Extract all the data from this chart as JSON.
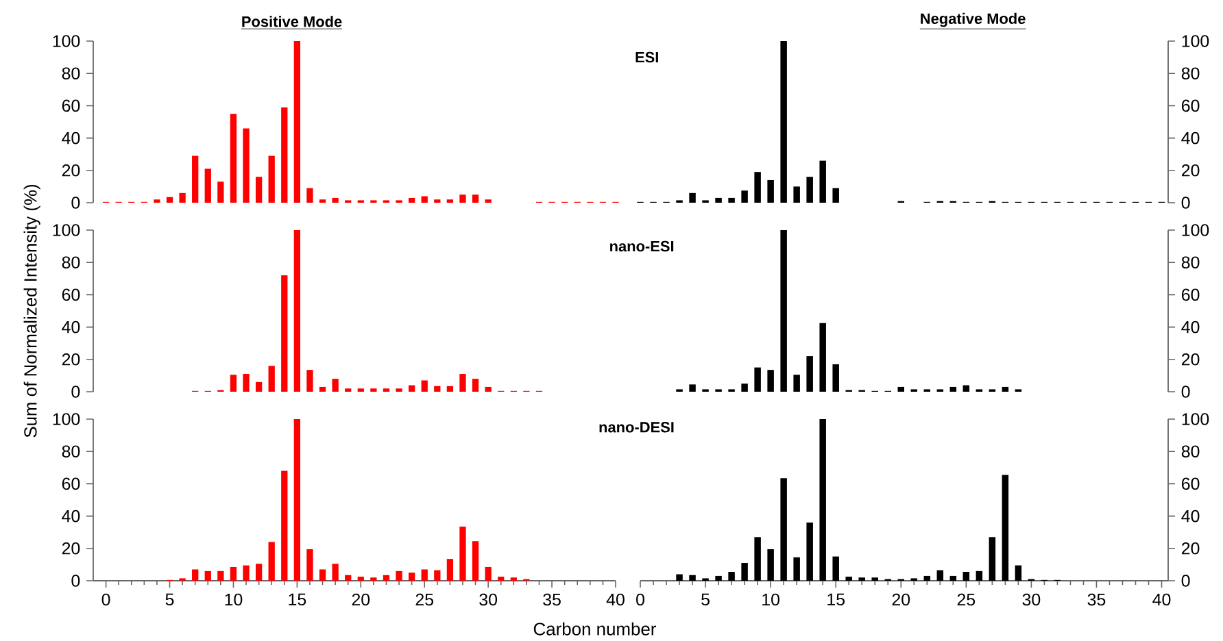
{
  "chart_data": [
    {
      "type": "bar",
      "title": "Positive Mode",
      "annotations": [
        "ESI"
      ],
      "xlim": [
        -1,
        40
      ],
      "ylim": [
        0,
        100
      ],
      "yticks": [
        0,
        20,
        40,
        60,
        80,
        100
      ],
      "tick_labels": "y",
      "x": [
        0,
        1,
        2,
        3,
        4,
        5,
        6,
        7,
        8,
        9,
        10,
        11,
        12,
        13,
        14,
        15,
        16,
        17,
        18,
        19,
        20,
        21,
        22,
        23,
        24,
        25,
        26,
        27,
        28,
        29,
        30,
        34,
        35,
        36,
        37,
        38,
        39,
        40
      ],
      "series": [
        {
          "color": "#ff0000",
          "values": [
            0.5,
            0.5,
            0.5,
            0.5,
            2,
            3.5,
            6,
            29,
            21,
            13,
            55,
            46,
            16,
            29,
            59,
            100,
            9,
            2,
            3,
            1.5,
            1.5,
            1.5,
            1.5,
            1.5,
            3,
            4,
            2,
            2,
            5,
            5,
            2,
            0.5,
            0.5,
            0.5,
            0.5,
            0.5,
            0.5,
            0.5
          ]
        }
      ]
    },
    {
      "type": "bar",
      "title": "Negative Mode",
      "xlim": [
        0,
        40.5
      ],
      "y2lim": [
        0,
        100
      ],
      "y2ticks": [
        0,
        20,
        40,
        60,
        80,
        100
      ],
      "tick_labels": "y2",
      "x": [
        0,
        1,
        2,
        3,
        4,
        5,
        6,
        7,
        8,
        9,
        10,
        11,
        12,
        13,
        14,
        15,
        20,
        22,
        23,
        24,
        25,
        26,
        27,
        28,
        29,
        30,
        31,
        32,
        33,
        34,
        35,
        36,
        37,
        38,
        39,
        40
      ],
      "series": [
        {
          "color": "#000000",
          "axis": "y2",
          "values": [
            0.5,
            0.5,
            0.5,
            1.5,
            6,
            1.5,
            3,
            3,
            7.5,
            19,
            14,
            100,
            10,
            16,
            26,
            9,
            1,
            0.5,
            1,
            1,
            0.5,
            0.5,
            1,
            0.5,
            0.5,
            0.5,
            0.5,
            0.5,
            0.5,
            0.5,
            0.5,
            0.5,
            0.5,
            0.5,
            0.5,
            0.5
          ]
        }
      ]
    },
    {
      "type": "bar",
      "annotations": [
        "nano-ESI"
      ],
      "ylabel": "Sum of Normalized Intensity (%)",
      "xlim": [
        -1,
        40
      ],
      "ylim": [
        0,
        100
      ],
      "yticks": [
        0,
        20,
        40,
        60,
        80,
        100
      ],
      "tick_labels": "y",
      "x": [
        7,
        8,
        9,
        10,
        11,
        12,
        13,
        14,
        15,
        16,
        17,
        18,
        19,
        20,
        21,
        22,
        23,
        24,
        25,
        26,
        27,
        28,
        29,
        30,
        31,
        32,
        33,
        34
      ],
      "series": [
        {
          "color": "#ff0000",
          "values": [
            0.5,
            0.5,
            1,
            10.5,
            11,
            6,
            16,
            72,
            100,
            13.5,
            3,
            8,
            2,
            2,
            2,
            2,
            2,
            4,
            7,
            3.5,
            3.5,
            11,
            8,
            3,
            0.5,
            0.5,
            0.5,
            0.5
          ]
        }
      ]
    },
    {
      "type": "bar",
      "xlim": [
        0,
        40.5
      ],
      "y2lim": [
        0,
        100
      ],
      "y2ticks": [
        0,
        20,
        40,
        60,
        80,
        100
      ],
      "tick_labels": "y2",
      "x": [
        3,
        4,
        5,
        6,
        7,
        8,
        9,
        10,
        11,
        12,
        13,
        14,
        15,
        16,
        17,
        18,
        19,
        20,
        21,
        22,
        23,
        24,
        25,
        26,
        27,
        28,
        29
      ],
      "series": [
        {
          "color": "#000000",
          "axis": "y2",
          "values": [
            1.5,
            4.5,
            1.5,
            1.5,
            1.5,
            5,
            15,
            13.5,
            100,
            10.5,
            22,
            42.5,
            17,
            1,
            1,
            0.5,
            0.5,
            3,
            1.5,
            1.5,
            1.5,
            3,
            4,
            1.5,
            1.5,
            3,
            1.5
          ]
        }
      ]
    },
    {
      "type": "bar",
      "annotations": [
        "nano-DESI"
      ],
      "xlabel": "Carbon number",
      "xlim": [
        -1,
        40
      ],
      "xticks": [
        0,
        5,
        10,
        15,
        20,
        25,
        30,
        35,
        40
      ],
      "ylim": [
        0,
        100
      ],
      "yticks": [
        0,
        20,
        40,
        60,
        80,
        100
      ],
      "x": [
        5,
        6,
        7,
        8,
        9,
        10,
        11,
        12,
        13,
        14,
        15,
        16,
        17,
        18,
        19,
        20,
        21,
        22,
        23,
        24,
        25,
        26,
        27,
        28,
        29,
        30,
        31,
        32,
        33
      ],
      "series": [
        {
          "color": "#ff0000",
          "values": [
            0.5,
            1.5,
            7,
            6,
            6,
            8.5,
            9.5,
            10.5,
            24,
            68,
            100,
            19.5,
            7,
            10.5,
            3.5,
            2.5,
            2,
            3.5,
            6,
            5,
            7,
            6.5,
            13.5,
            33.5,
            24.5,
            8.5,
            2.5,
            2,
            1
          ]
        }
      ]
    },
    {
      "type": "bar",
      "xlim": [
        0,
        40.5
      ],
      "xticks": [
        0,
        5,
        10,
        15,
        20,
        25,
        30,
        35,
        40
      ],
      "y2lim": [
        0,
        100
      ],
      "y2ticks": [
        0,
        20,
        40,
        60,
        80,
        100
      ],
      "x": [
        3,
        4,
        5,
        6,
        7,
        8,
        9,
        10,
        11,
        12,
        13,
        14,
        15,
        16,
        17,
        18,
        19,
        20,
        21,
        22,
        23,
        24,
        25,
        26,
        27,
        28,
        29,
        30,
        31,
        32
      ],
      "series": [
        {
          "color": "#000000",
          "axis": "y2",
          "values": [
            4,
            3.5,
            1.5,
            3,
            5.5,
            11,
            27,
            19.5,
            63.5,
            14.5,
            36,
            100,
            15,
            2.5,
            2,
            2,
            1,
            1,
            1.5,
            3,
            6.5,
            3,
            5.5,
            6,
            27,
            65.5,
            9.5,
            1,
            0.5,
            0.5
          ]
        }
      ]
    }
  ]
}
